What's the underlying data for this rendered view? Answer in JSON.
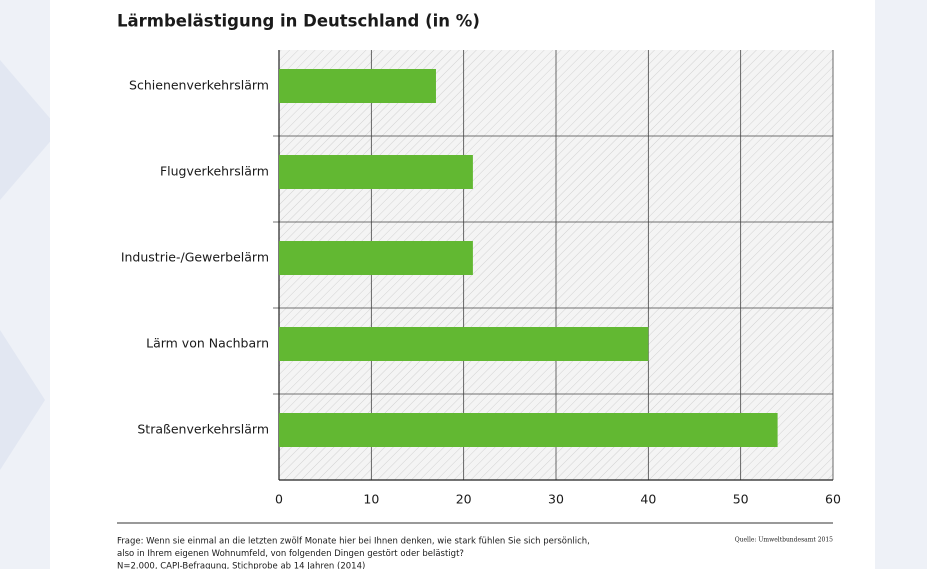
{
  "chart_data": {
    "type": "bar",
    "orientation": "horizontal",
    "title": "Lärmbelästigung in Deutschland (in %)",
    "categories": [
      "Schienenverkehrslärm",
      "Flugverkehrslärm",
      "Industrie-/Gewerbelärm",
      "Lärm von Nachbarn",
      "Straßenverkehrslärm"
    ],
    "values": [
      17,
      21,
      21,
      40,
      54
    ],
    "color": "#62b832",
    "xlim": [
      0,
      60
    ],
    "xticks": [
      0,
      10,
      20,
      30,
      40,
      50,
      60
    ],
    "grid": true,
    "notes": [
      "Frage: Wenn sie einmal an die letzten zwölf Monate hier bei Ihnen denken, wie stark fühlen Sie sich persönlich,",
      "also in Ihrem eigenen Wohnumfeld, von folgenden Dingen gestört oder belästigt?",
      "N=2.000, CAPI-Befragung, Stichprobe ab 14 Jahren (2014)"
    ],
    "source": "Quelle: Umweltbundesamt 2015"
  }
}
